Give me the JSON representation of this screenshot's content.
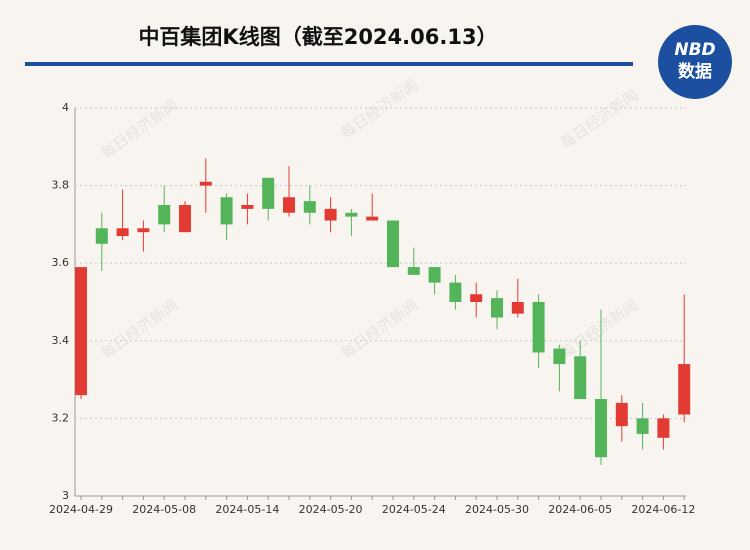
{
  "chart_data": {
    "type": "candlestick",
    "title": "中百集团K线图（截至2024.06.13）",
    "logo": {
      "top": "NBD",
      "bottom": "数据"
    },
    "watermark": "每日经济新闻",
    "categories": [
      "2024-04-29",
      null,
      null,
      null,
      "2024-05-08",
      null,
      null,
      null,
      "2024-05-14",
      null,
      null,
      null,
      "2024-05-20",
      null,
      null,
      null,
      "2024-05-24",
      null,
      null,
      null,
      "2024-05-30",
      null,
      null,
      null,
      "2024-06-05",
      null,
      null,
      null,
      "2024-06-12",
      null
    ],
    "open": [
      3.26,
      3.69,
      3.67,
      3.68,
      3.75,
      3.68,
      3.8,
      3.77,
      3.74,
      3.82,
      3.73,
      3.76,
      3.71,
      3.73,
      3.71,
      3.71,
      3.59,
      3.59,
      3.55,
      3.5,
      3.51,
      3.47,
      3.5,
      3.38,
      3.36,
      3.25,
      3.18,
      3.2,
      3.15,
      3.21
    ],
    "high": [
      3.59,
      3.73,
      3.79,
      3.71,
      3.8,
      3.76,
      3.87,
      3.78,
      3.78,
      3.82,
      3.85,
      3.8,
      3.77,
      3.74,
      3.78,
      3.71,
      3.64,
      3.59,
      3.57,
      3.55,
      3.53,
      3.56,
      3.52,
      3.39,
      3.4,
      3.48,
      3.26,
      3.24,
      3.21,
      3.52
    ],
    "low": [
      3.25,
      3.58,
      3.66,
      3.63,
      3.68,
      3.68,
      3.73,
      3.66,
      3.7,
      3.71,
      3.72,
      3.7,
      3.68,
      3.67,
      3.71,
      3.59,
      3.57,
      3.52,
      3.48,
      3.46,
      3.43,
      3.46,
      3.33,
      3.27,
      3.25,
      3.08,
      3.14,
      3.12,
      3.12,
      3.19
    ],
    "close": [
      3.59,
      3.65,
      3.69,
      3.69,
      3.7,
      3.75,
      3.81,
      3.7,
      3.75,
      3.74,
      3.77,
      3.73,
      3.74,
      3.72,
      3.72,
      3.59,
      3.57,
      3.55,
      3.5,
      3.52,
      3.46,
      3.5,
      3.37,
      3.34,
      3.25,
      3.1,
      3.24,
      3.16,
      3.2,
      3.34
    ],
    "up_color": "#e23b33",
    "down_color": "#54b45a",
    "ylim": [
      3,
      4
    ],
    "yticks": [
      3,
      3.2,
      3.4,
      3.6,
      3.8,
      4
    ],
    "grid": true
  }
}
